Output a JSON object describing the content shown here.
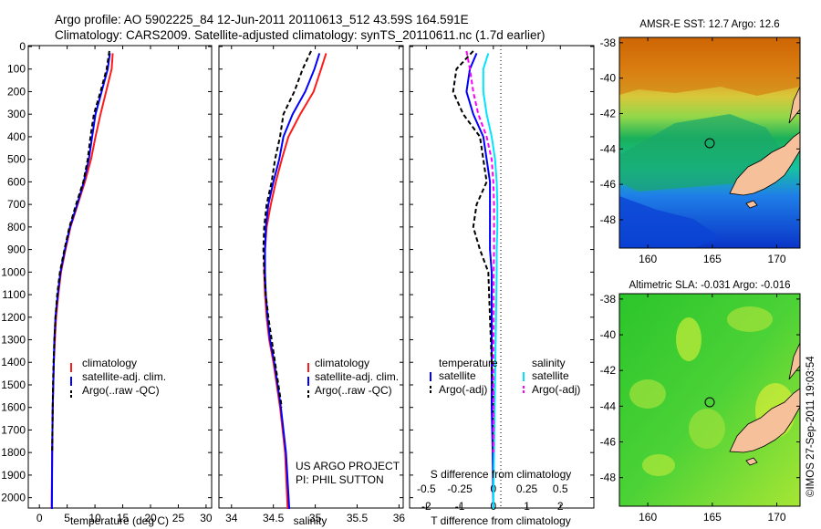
{
  "header": {
    "line1": "Argo profile: AO 5902225_84 12-Jun-2011 20110613_512 43.59S 164.591E",
    "line2": "Climatology: CARS2009. Satellite-adjusted climatology: synTS_20110611.nc (1.7d earlier)"
  },
  "colors": {
    "climatology": "#ff1a1a",
    "satellite_adj": "#0000ff",
    "argo": "#000000",
    "salinity_sat": "#00e5ff",
    "salinity_argo": "#ff00ff",
    "land": "#f5c09a"
  },
  "depth_ticks": [
    0,
    100,
    200,
    300,
    400,
    500,
    600,
    700,
    800,
    900,
    1000,
    1100,
    1200,
    1300,
    1400,
    1500,
    1600,
    1700,
    1800,
    1900,
    2000
  ],
  "temp_panel": {
    "xlabel": "temperature (deg C)",
    "xticks": [
      0,
      5,
      10,
      15,
      20,
      25,
      30
    ],
    "legend": [
      "climatology",
      "satellite-adj. clim.",
      "Argo(..raw -QC)"
    ]
  },
  "sal_panel": {
    "xlabel": "salinity",
    "xticks": [
      "34",
      "34.5",
      "35",
      "35.5",
      "36"
    ],
    "legend": [
      "climatology",
      "satellite-adj. clim.",
      "Argo(..raw -QC)"
    ],
    "credit1": "US ARGO PROJECT",
    "credit2": "PI: PHIL SUTTON"
  },
  "diff_panel": {
    "xlabel": "T difference from climatology",
    "xlabel_top": "S difference from climatology",
    "xticks_bottom": [
      "-2",
      "-1",
      "0",
      "1",
      "2"
    ],
    "xticks_top": [
      "-0.5",
      "-0.25",
      "0",
      "0.25",
      "0.5"
    ],
    "legend_temp_title": "temperature",
    "legend_sal_title": "salinity",
    "legend_temp": [
      "satellite",
      "Argo(-adj)"
    ],
    "legend_sal": [
      "satellite",
      "Argo(-adj)"
    ]
  },
  "map_sst": {
    "title": "AMSR-E SST: 12.7 Argo: 12.6",
    "yticks": [
      "-38",
      "-40",
      "-42",
      "-44",
      "-46",
      "-48"
    ],
    "xticks": [
      "160",
      "165",
      "170"
    ]
  },
  "map_sla": {
    "title": "Altimetric SLA: -0.031 Argo: -0.016",
    "yticks": [
      "-38",
      "-40",
      "-42",
      "-44",
      "-46",
      "-48"
    ],
    "xticks": [
      "160",
      "165",
      "170"
    ]
  },
  "side_note": "©IMOS 27-Sep-2011 19:03:54",
  "chart_data": [
    {
      "type": "line",
      "name": "temperature profile",
      "xlabel": "temperature (deg C)",
      "ylim": [
        2050,
        0
      ],
      "xlim": [
        -2,
        31
      ],
      "series": [
        {
          "name": "climatology",
          "color": "#ff1a1a",
          "x": [
            13.2,
            13.0,
            12.0,
            11.0,
            10.1,
            9.3,
            8.2,
            6.9,
            5.6,
            4.7,
            3.9,
            3.4,
            3.0,
            2.8,
            2.6,
            2.5,
            2.4,
            2.35,
            2.3,
            2.2
          ],
          "y": [
            30,
            100,
            200,
            300,
            400,
            500,
            600,
            700,
            800,
            900,
            1000,
            1100,
            1200,
            1300,
            1400,
            1500,
            1600,
            1700,
            1800,
            2050
          ]
        },
        {
          "name": "satellite-adj. clim.",
          "color": "#0000ff",
          "x": [
            12.7,
            12.3,
            11.2,
            10.1,
            9.5,
            8.9,
            8.0,
            6.8,
            5.5,
            4.6,
            3.8,
            3.3,
            2.9,
            2.7,
            2.6,
            2.5,
            2.4,
            2.35,
            2.3,
            2.25
          ],
          "y": [
            30,
            100,
            200,
            300,
            400,
            500,
            600,
            700,
            800,
            900,
            1000,
            1100,
            1200,
            1300,
            1400,
            1500,
            1600,
            1700,
            1800,
            2050
          ]
        },
        {
          "name": "Argo(..raw -QC)",
          "color": "#000000",
          "x": [
            12.6,
            12.1,
            11.0,
            9.8,
            9.2,
            8.7,
            7.9,
            6.6,
            5.4,
            4.5,
            3.7,
            3.2,
            2.9,
            2.7,
            2.55,
            2.45,
            2.4,
            2.35,
            2.3
          ],
          "y": [
            20,
            100,
            200,
            300,
            400,
            500,
            600,
            700,
            800,
            900,
            1000,
            1100,
            1200,
            1300,
            1400,
            1500,
            1600,
            1700,
            1800
          ]
        }
      ]
    },
    {
      "type": "line",
      "name": "salinity profile",
      "xlabel": "salinity",
      "ylim": [
        2050,
        0
      ],
      "xlim": [
        33.85,
        36.05
      ],
      "series": [
        {
          "name": "climatology",
          "color": "#ff1a1a",
          "x": [
            35.13,
            35.07,
            34.98,
            34.82,
            34.68,
            34.6,
            34.53,
            34.47,
            34.42,
            34.4,
            34.39,
            34.4,
            34.42,
            34.45,
            34.5,
            34.54,
            34.58,
            34.61,
            34.64,
            34.67
          ],
          "y": [
            30,
            100,
            200,
            300,
            400,
            500,
            600,
            700,
            800,
            900,
            1000,
            1100,
            1200,
            1300,
            1400,
            1500,
            1600,
            1700,
            1800,
            2050
          ]
        },
        {
          "name": "satellite-adj. clim.",
          "color": "#0000ff",
          "x": [
            35.05,
            34.99,
            34.88,
            34.73,
            34.62,
            34.57,
            34.5,
            34.44,
            34.41,
            34.4,
            34.4,
            34.41,
            34.43,
            34.46,
            34.51,
            34.55,
            34.59,
            34.62,
            34.65,
            34.69
          ],
          "y": [
            30,
            100,
            200,
            300,
            400,
            500,
            600,
            700,
            800,
            900,
            1000,
            1100,
            1200,
            1300,
            1400,
            1500,
            1600,
            1700,
            1800,
            2050
          ]
        },
        {
          "name": "Argo(..raw -QC)",
          "color": "#000000",
          "x": [
            34.95,
            34.85,
            34.75,
            34.62,
            34.58,
            34.52,
            34.48,
            34.42,
            34.39,
            34.38,
            34.39,
            34.41,
            34.44,
            34.48,
            34.52,
            34.56,
            34.6
          ],
          "y": [
            20,
            100,
            200,
            300,
            400,
            500,
            600,
            700,
            800,
            900,
            1000,
            1100,
            1200,
            1300,
            1400,
            1500,
            1600
          ]
        }
      ]
    },
    {
      "type": "line",
      "name": "difference profiles",
      "xlabel": "T difference from climatology",
      "ylim": [
        2050,
        0
      ],
      "xlim": [
        -2.5,
        3
      ],
      "series": [
        {
          "name": "temperature satellite",
          "color": "#0000ff",
          "x": [
            -0.5,
            -0.7,
            -0.8,
            -0.6,
            -0.3,
            -0.2,
            -0.1,
            -0.1,
            -0.1,
            -0.1,
            -0.05,
            -0.05,
            -0.05,
            -0.05,
            -0.02,
            0
          ],
          "y": [
            30,
            100,
            200,
            300,
            400,
            500,
            600,
            700,
            800,
            900,
            1000,
            1200,
            1400,
            1600,
            1800,
            2050
          ]
        },
        {
          "name": "temperature Argo(-adj)",
          "color": "#000000",
          "x": [
            -0.6,
            -1.1,
            -1.2,
            -0.9,
            -0.4,
            -0.3,
            -0.2,
            -0.5,
            -0.6,
            -0.4,
            -0.15,
            -0.1,
            -0.05,
            0,
            0
          ],
          "y": [
            20,
            100,
            200,
            300,
            400,
            500,
            600,
            700,
            800,
            900,
            1000,
            1200,
            1400,
            1600,
            1800
          ]
        },
        {
          "name": "salinity satellite",
          "color": "#00e5ff",
          "x": [
            -0.15,
            -0.3,
            -0.3,
            -0.2,
            -0.05,
            0.05,
            0.1,
            0.12,
            0.12,
            0.1,
            0.1,
            0.08,
            0.06,
            0.04,
            0.02,
            0
          ],
          "y": [
            30,
            100,
            200,
            300,
            400,
            500,
            600,
            700,
            800,
            900,
            1000,
            1200,
            1400,
            1600,
            1800,
            2050
          ]
        },
        {
          "name": "salinity Argo(-adj)",
          "color": "#ff00ff",
          "x": [
            -0.8,
            -0.7,
            -0.6,
            -0.45,
            -0.2,
            -0.05,
            0,
            0.02,
            0.02,
            0.02,
            0.01,
            0.01,
            0,
            0,
            0
          ],
          "y": [
            20,
            100,
            200,
            300,
            400,
            500,
            600,
            700,
            800,
            900,
            1000,
            1200,
            1400,
            1600,
            1800
          ]
        }
      ]
    }
  ]
}
